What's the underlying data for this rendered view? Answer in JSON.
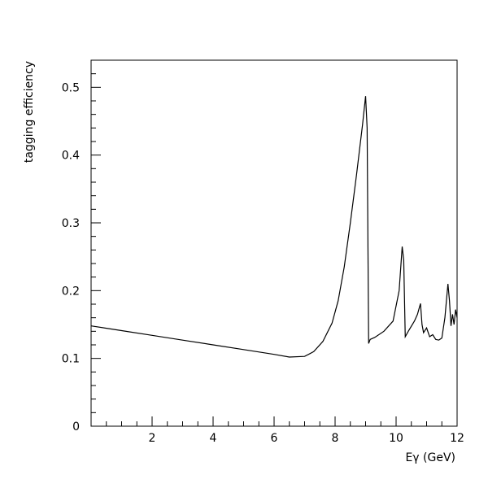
{
  "chart_data": {
    "type": "line",
    "title": "",
    "xlabel": "Eγ (GeV)",
    "ylabel": "tagging efficiency",
    "xlim": [
      0,
      12
    ],
    "ylim": [
      0,
      0.54
    ],
    "xticks": [
      2,
      4,
      6,
      8,
      10,
      12
    ],
    "xtick_labels": [
      "2",
      "4",
      "6",
      "8",
      "10",
      "12"
    ],
    "yticks": [
      0,
      0.1,
      0.2,
      0.3,
      0.4,
      0.5
    ],
    "ytick_labels": [
      "0",
      "0.1",
      "0.2",
      "0.3",
      "0.4",
      "0.5"
    ],
    "grid": false,
    "line_color": "#000000",
    "series": [
      {
        "x": [
          0.0,
          1.0,
          2.0,
          3.0,
          4.0,
          5.0,
          6.0,
          6.5,
          7.0,
          7.3,
          7.6,
          7.9,
          8.1,
          8.3,
          8.5,
          8.7,
          8.9,
          9.0,
          9.05,
          9.1,
          9.15,
          9.3,
          9.6,
          9.9,
          10.1,
          10.2,
          10.25,
          10.3,
          10.4,
          10.6,
          10.7,
          10.8,
          10.85,
          10.9,
          11.0,
          11.1,
          11.2,
          11.3,
          11.4,
          11.5,
          11.6,
          11.65,
          11.7,
          11.75,
          11.8,
          11.85,
          11.9,
          11.95,
          12.0
        ],
        "y": [
          0.148,
          0.141,
          0.134,
          0.127,
          0.12,
          0.113,
          0.106,
          0.102,
          0.103,
          0.11,
          0.125,
          0.152,
          0.185,
          0.235,
          0.3,
          0.37,
          0.445,
          0.487,
          0.44,
          0.122,
          0.128,
          0.131,
          0.14,
          0.155,
          0.2,
          0.265,
          0.245,
          0.132,
          0.14,
          0.155,
          0.165,
          0.181,
          0.15,
          0.138,
          0.145,
          0.132,
          0.135,
          0.128,
          0.127,
          0.13,
          0.16,
          0.185,
          0.21,
          0.185,
          0.148,
          0.165,
          0.15,
          0.172,
          0.16
        ]
      }
    ]
  }
}
